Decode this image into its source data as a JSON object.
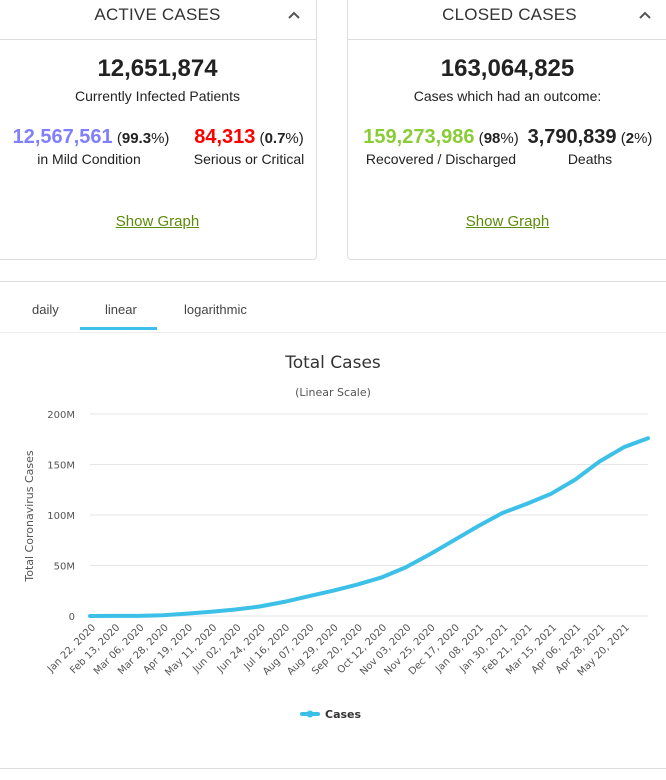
{
  "active": {
    "title": "ACTIVE CASES",
    "total": "12,651,874",
    "subtitle": "Currently Infected Patients",
    "mild": {
      "value": "12,567,561",
      "pct_pre": " (",
      "pct": "99.3",
      "pct_post": "%)",
      "label": "in Mild Condition",
      "color": "#8080ff"
    },
    "serious": {
      "value": "84,313",
      "pct_pre": " (",
      "pct": "0.7",
      "pct_post": "%)",
      "label": "Serious or Critical",
      "color": "#ff0000"
    },
    "show_graph": "Show Graph"
  },
  "closed": {
    "title": "CLOSED CASES",
    "total": "163,064,825",
    "subtitle": "Cases which had an outcome:",
    "recovered": {
      "value": "159,273,986",
      "pct_pre": " (",
      "pct": "98",
      "pct_post": "%)",
      "label": "Recovered / Discharged",
      "color": "#8acc36"
    },
    "deaths": {
      "value": "3,790,839",
      "pct_pre": " (",
      "pct": "2",
      "pct_post": "%)",
      "label": "Deaths",
      "color": "#222222"
    },
    "show_graph": "Show Graph"
  },
  "tabs": [
    "daily",
    "linear",
    "logarithmic"
  ],
  "active_tab": "linear",
  "colors": {
    "accent": "#3cc0e8",
    "link": "#5c8a0a"
  },
  "chart_data": {
    "type": "line",
    "title": "Total Cases",
    "subtitle": "(Linear Scale)",
    "ylabel": "Total Coronavirus Cases",
    "xlabel": "",
    "ylim": [
      0,
      200000000
    ],
    "y_ticks": [
      0,
      50000000,
      100000000,
      150000000,
      200000000
    ],
    "y_tick_labels": [
      "0",
      "50M",
      "100M",
      "150M",
      "200M"
    ],
    "x_tick_labels": [
      "Jan 22, 2020",
      "Feb 13, 2020",
      "Mar 06, 2020",
      "Mar 28, 2020",
      "Apr 19, 2020",
      "May 11, 2020",
      "Jun 02, 2020",
      "Jun 24, 2020",
      "Jul 16, 2020",
      "Aug 07, 2020",
      "Aug 29, 2020",
      "Sep 20, 2020",
      "Oct 12, 2020",
      "Nov 03, 2020",
      "Nov 25, 2020",
      "Dec 17, 2020",
      "Jan 08, 2021",
      "Jan 30, 2021",
      "Feb 21, 2021",
      "Mar 15, 2021",
      "Apr 06, 2021",
      "Apr 28, 2021",
      "May 20, 2021"
    ],
    "series": [
      {
        "name": "Cases",
        "color": "#3cc0e8",
        "x": [
          "Jan 22, 2020",
          "Feb 13, 2020",
          "Mar 06, 2020",
          "Mar 28, 2020",
          "Apr 19, 2020",
          "May 11, 2020",
          "Jun 02, 2020",
          "Jun 24, 2020",
          "Jul 16, 2020",
          "Aug 07, 2020",
          "Aug 29, 2020",
          "Sep 20, 2020",
          "Oct 12, 2020",
          "Nov 03, 2020",
          "Nov 25, 2020",
          "Dec 17, 2020",
          "Jan 08, 2021",
          "Jan 30, 2021",
          "Feb 21, 2021",
          "Mar 15, 2021",
          "Apr 06, 2021",
          "Apr 28, 2021",
          "May 20, 2021",
          "Jun 10, 2021"
        ],
        "values": [
          0,
          100000,
          100000,
          700000,
          2400000,
          4200000,
          6400000,
          9400000,
          14000000,
          19500000,
          25000000,
          31000000,
          38000000,
          48000000,
          61000000,
          75000000,
          89000000,
          102000000,
          111000000,
          121000000,
          135000000,
          153000000,
          167000000,
          176000000
        ]
      }
    ],
    "legend": "bottom-center",
    "grid": true
  }
}
